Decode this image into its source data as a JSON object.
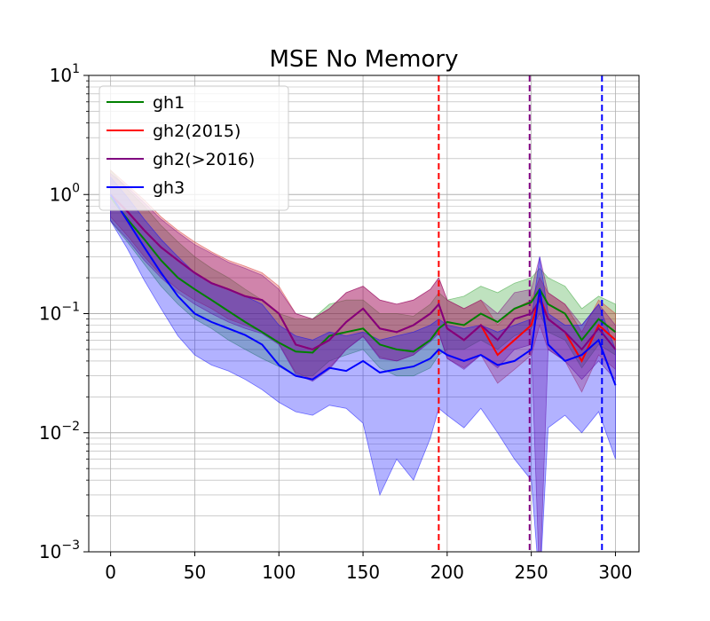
{
  "chart_data": {
    "type": "line",
    "title": "MSE No Memory",
    "xlabel": "",
    "ylabel": "",
    "xlim": [
      -13,
      314
    ],
    "ylim": [
      0.001,
      10
    ],
    "yscale": "log",
    "grid": "major and minor",
    "x_ticks": [
      0,
      50,
      100,
      150,
      200,
      250,
      300
    ],
    "y_ticks": [
      {
        "base": "10",
        "exp": "−3",
        "value": 0.001
      },
      {
        "base": "10",
        "exp": "−2",
        "value": 0.01
      },
      {
        "base": "10",
        "exp": "−1",
        "value": 0.1
      },
      {
        "base": "10",
        "exp": "0",
        "value": 1
      },
      {
        "base": "10",
        "exp": "1",
        "value": 10
      }
    ],
    "legend_position": "top-left",
    "series": [
      {
        "name": "gh1",
        "color": "#008000",
        "band_color": "#2ca02c",
        "band_opacity": 0.3,
        "x": [
          0,
          10,
          20,
          30,
          40,
          50,
          60,
          70,
          80,
          90,
          100,
          110,
          120,
          130,
          140,
          150,
          160,
          170,
          180,
          190,
          195,
          200,
          210,
          220,
          230,
          240,
          250,
          255,
          260,
          270,
          280,
          290,
          300
        ],
        "values": [
          0.95,
          0.62,
          0.42,
          0.28,
          0.2,
          0.16,
          0.13,
          0.105,
          0.085,
          0.07,
          0.057,
          0.048,
          0.047,
          0.065,
          0.07,
          0.075,
          0.055,
          0.05,
          0.048,
          0.06,
          0.075,
          0.085,
          0.08,
          0.1,
          0.085,
          0.11,
          0.125,
          0.16,
          0.12,
          0.1,
          0.06,
          0.09,
          0.07
        ],
        "upper": [
          1.6,
          1.1,
          0.8,
          0.55,
          0.4,
          0.3,
          0.24,
          0.2,
          0.16,
          0.13,
          0.1,
          0.09,
          0.09,
          0.12,
          0.13,
          0.13,
          0.1,
          0.1,
          0.095,
          0.12,
          0.15,
          0.13,
          0.14,
          0.17,
          0.15,
          0.18,
          0.2,
          0.24,
          0.2,
          0.17,
          0.11,
          0.14,
          0.12
        ],
        "lower": [
          0.6,
          0.4,
          0.26,
          0.17,
          0.12,
          0.09,
          0.075,
          0.06,
          0.05,
          0.042,
          0.036,
          0.03,
          0.03,
          0.04,
          0.045,
          0.05,
          0.035,
          0.03,
          0.03,
          0.035,
          0.045,
          0.05,
          0.05,
          0.06,
          0.05,
          0.065,
          0.075,
          0.1,
          0.07,
          0.06,
          0.035,
          0.055,
          0.045
        ]
      },
      {
        "name": "gh2(2015)",
        "color": "#ff0000",
        "band_color": "#d62728",
        "band_opacity": 0.3,
        "x": [
          0,
          10,
          20,
          30,
          40,
          50,
          60,
          70,
          80,
          90,
          100,
          110,
          120,
          130,
          140,
          150,
          160,
          170,
          180,
          190,
          195,
          200,
          210,
          220,
          230,
          240,
          250,
          255,
          260,
          270,
          280,
          290,
          300
        ],
        "values": [
          1.0,
          0.72,
          0.5,
          0.36,
          0.28,
          0.22,
          0.18,
          0.16,
          0.14,
          0.13,
          0.1,
          0.055,
          0.05,
          0.06,
          0.085,
          0.11,
          0.075,
          0.07,
          0.08,
          0.1,
          0.12,
          0.075,
          0.06,
          0.08,
          0.045,
          0.06,
          0.08,
          0.14,
          0.09,
          0.07,
          0.04,
          0.08,
          0.06
        ],
        "upper": [
          1.6,
          1.2,
          0.9,
          0.65,
          0.5,
          0.4,
          0.33,
          0.28,
          0.25,
          0.22,
          0.17,
          0.1,
          0.09,
          0.11,
          0.15,
          0.17,
          0.13,
          0.12,
          0.13,
          0.16,
          0.2,
          0.13,
          0.11,
          0.13,
          0.08,
          0.11,
          0.13,
          0.2,
          0.15,
          0.12,
          0.07,
          0.13,
          0.1
        ],
        "lower": [
          0.65,
          0.45,
          0.3,
          0.21,
          0.16,
          0.13,
          0.11,
          0.09,
          0.08,
          0.07,
          0.056,
          0.032,
          0.028,
          0.035,
          0.05,
          0.065,
          0.043,
          0.04,
          0.045,
          0.06,
          0.07,
          0.042,
          0.035,
          0.045,
          0.026,
          0.034,
          0.045,
          0.08,
          0.05,
          0.04,
          0.022,
          0.045,
          0.034
        ]
      },
      {
        "name": "gh2(>2016)",
        "color": "#800080",
        "band_color": "#800080",
        "band_opacity": 0.3,
        "x": [
          0,
          10,
          20,
          30,
          40,
          50,
          60,
          70,
          80,
          90,
          100,
          110,
          120,
          130,
          140,
          150,
          160,
          170,
          180,
          190,
          195,
          200,
          210,
          220,
          230,
          240,
          250,
          255,
          260,
          270,
          280,
          290,
          300
        ],
        "values": [
          1.0,
          0.72,
          0.5,
          0.36,
          0.28,
          0.22,
          0.18,
          0.16,
          0.14,
          0.13,
          0.1,
          0.055,
          0.05,
          0.06,
          0.085,
          0.11,
          0.075,
          0.07,
          0.08,
          0.1,
          0.12,
          0.075,
          0.06,
          0.08,
          0.06,
          0.09,
          0.1,
          0.13,
          0.09,
          0.07,
          0.05,
          0.075,
          0.05
        ],
        "upper": [
          1.5,
          1.15,
          0.85,
          0.62,
          0.48,
          0.38,
          0.32,
          0.27,
          0.24,
          0.21,
          0.16,
          0.1,
          0.09,
          0.11,
          0.15,
          0.17,
          0.13,
          0.12,
          0.13,
          0.16,
          0.2,
          0.13,
          0.11,
          0.13,
          0.1,
          0.15,
          0.16,
          0.3,
          0.15,
          0.12,
          0.08,
          0.12,
          0.08
        ],
        "lower": [
          0.6,
          0.42,
          0.28,
          0.2,
          0.15,
          0.12,
          0.1,
          0.085,
          0.075,
          0.068,
          0.055,
          0.031,
          0.027,
          0.034,
          0.05,
          0.064,
          0.042,
          0.04,
          0.045,
          0.058,
          0.068,
          0.042,
          0.034,
          0.045,
          0.035,
          0.05,
          0.055,
          0.0005,
          0.05,
          0.04,
          0.028,
          0.04,
          0.028
        ]
      },
      {
        "name": "gh3",
        "color": "#0000ff",
        "band_color": "#0000ff",
        "band_opacity": 0.3,
        "x": [
          0,
          10,
          20,
          30,
          40,
          50,
          60,
          70,
          80,
          90,
          100,
          110,
          120,
          130,
          140,
          150,
          160,
          170,
          180,
          190,
          195,
          200,
          210,
          220,
          230,
          240,
          250,
          255,
          260,
          270,
          280,
          290,
          300
        ],
        "values": [
          1.0,
          0.6,
          0.36,
          0.22,
          0.14,
          0.1,
          0.085,
          0.075,
          0.066,
          0.055,
          0.037,
          0.03,
          0.028,
          0.035,
          0.033,
          0.04,
          0.032,
          0.034,
          0.036,
          0.042,
          0.05,
          0.045,
          0.04,
          0.045,
          0.037,
          0.04,
          0.05,
          0.16,
          0.055,
          0.04,
          0.045,
          0.06,
          0.025
        ],
        "upper": [
          1.4,
          0.95,
          0.62,
          0.42,
          0.3,
          0.22,
          0.18,
          0.16,
          0.14,
          0.12,
          0.08,
          0.065,
          0.06,
          0.07,
          0.065,
          0.07,
          0.06,
          0.065,
          0.07,
          0.08,
          0.09,
          0.08,
          0.075,
          0.08,
          0.07,
          0.08,
          0.09,
          0.3,
          0.1,
          0.08,
          0.08,
          0.12,
          0.05
        ],
        "lower": [
          0.6,
          0.35,
          0.19,
          0.11,
          0.065,
          0.045,
          0.037,
          0.033,
          0.028,
          0.023,
          0.018,
          0.015,
          0.014,
          0.017,
          0.016,
          0.012,
          0.003,
          0.006,
          0.004,
          0.009,
          0.016,
          0.014,
          0.011,
          0.016,
          0.01,
          0.006,
          0.004,
          0.0005,
          0.011,
          0.014,
          0.01,
          0.015,
          0.006
        ]
      }
    ],
    "vertical_lines": [
      {
        "x": 195,
        "color": "#ff0000",
        "style": "dashed"
      },
      {
        "x": 249,
        "color": "#800080",
        "style": "dashed"
      },
      {
        "x": 292,
        "color": "#0000ff",
        "style": "dashed"
      }
    ]
  }
}
